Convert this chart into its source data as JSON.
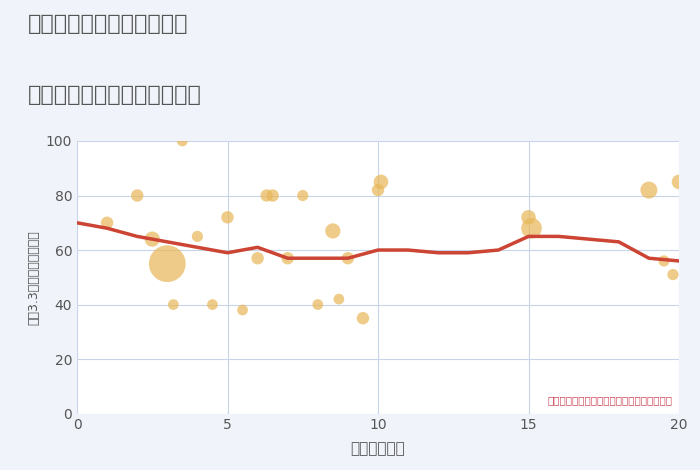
{
  "title_line1": "三重県松阪市飯高町加波の",
  "title_line2": "駅距離別中古マンション価格",
  "xlabel": "駅距離（分）",
  "ylabel": "坪（3.3㎡）単価（万円）",
  "annotation": "円の大きさは、取引のあった物件面積を示す",
  "background_color": "#f0f4fa",
  "plot_bg_color": "#ffffff",
  "grid_color": "#c8d4e8",
  "line_color": "#cc4433",
  "bubble_color": "#e8b85a",
  "bubble_alpha": 0.72,
  "title_color": "#555555",
  "annotation_color": "#cc4455",
  "tick_color": "#555555",
  "xlim": [
    0,
    20
  ],
  "ylim": [
    0,
    100
  ],
  "xticks": [
    0,
    5,
    10,
    15,
    20
  ],
  "yticks": [
    0,
    20,
    40,
    60,
    80,
    100
  ],
  "scatter_x": [
    1.0,
    2.0,
    2.5,
    3.0,
    3.2,
    3.5,
    4.0,
    4.5,
    5.0,
    5.5,
    6.0,
    6.3,
    6.5,
    7.0,
    7.5,
    8.0,
    8.5,
    8.7,
    9.0,
    9.5,
    10.0,
    10.1,
    15.0,
    15.1,
    19.0,
    19.5,
    19.8,
    20.0
  ],
  "scatter_y": [
    70,
    80,
    64,
    55,
    40,
    100,
    65,
    40,
    72,
    38,
    57,
    80,
    80,
    57,
    80,
    40,
    67,
    42,
    57,
    35,
    82,
    85,
    72,
    68,
    82,
    56,
    51,
    85
  ],
  "scatter_size": [
    80,
    80,
    120,
    700,
    60,
    60,
    65,
    60,
    80,
    60,
    80,
    80,
    80,
    80,
    65,
    60,
    120,
    60,
    80,
    80,
    80,
    110,
    110,
    220,
    150,
    65,
    65,
    110
  ],
  "line_x": [
    0,
    1,
    2,
    3,
    4,
    5,
    6,
    7,
    8,
    9,
    10,
    11,
    12,
    13,
    14,
    15,
    16,
    17,
    18,
    19,
    20
  ],
  "line_y": [
    70,
    68,
    65,
    63,
    61,
    59,
    61,
    57,
    57,
    57,
    60,
    60,
    59,
    59,
    60,
    65,
    65,
    64,
    63,
    57,
    56
  ]
}
